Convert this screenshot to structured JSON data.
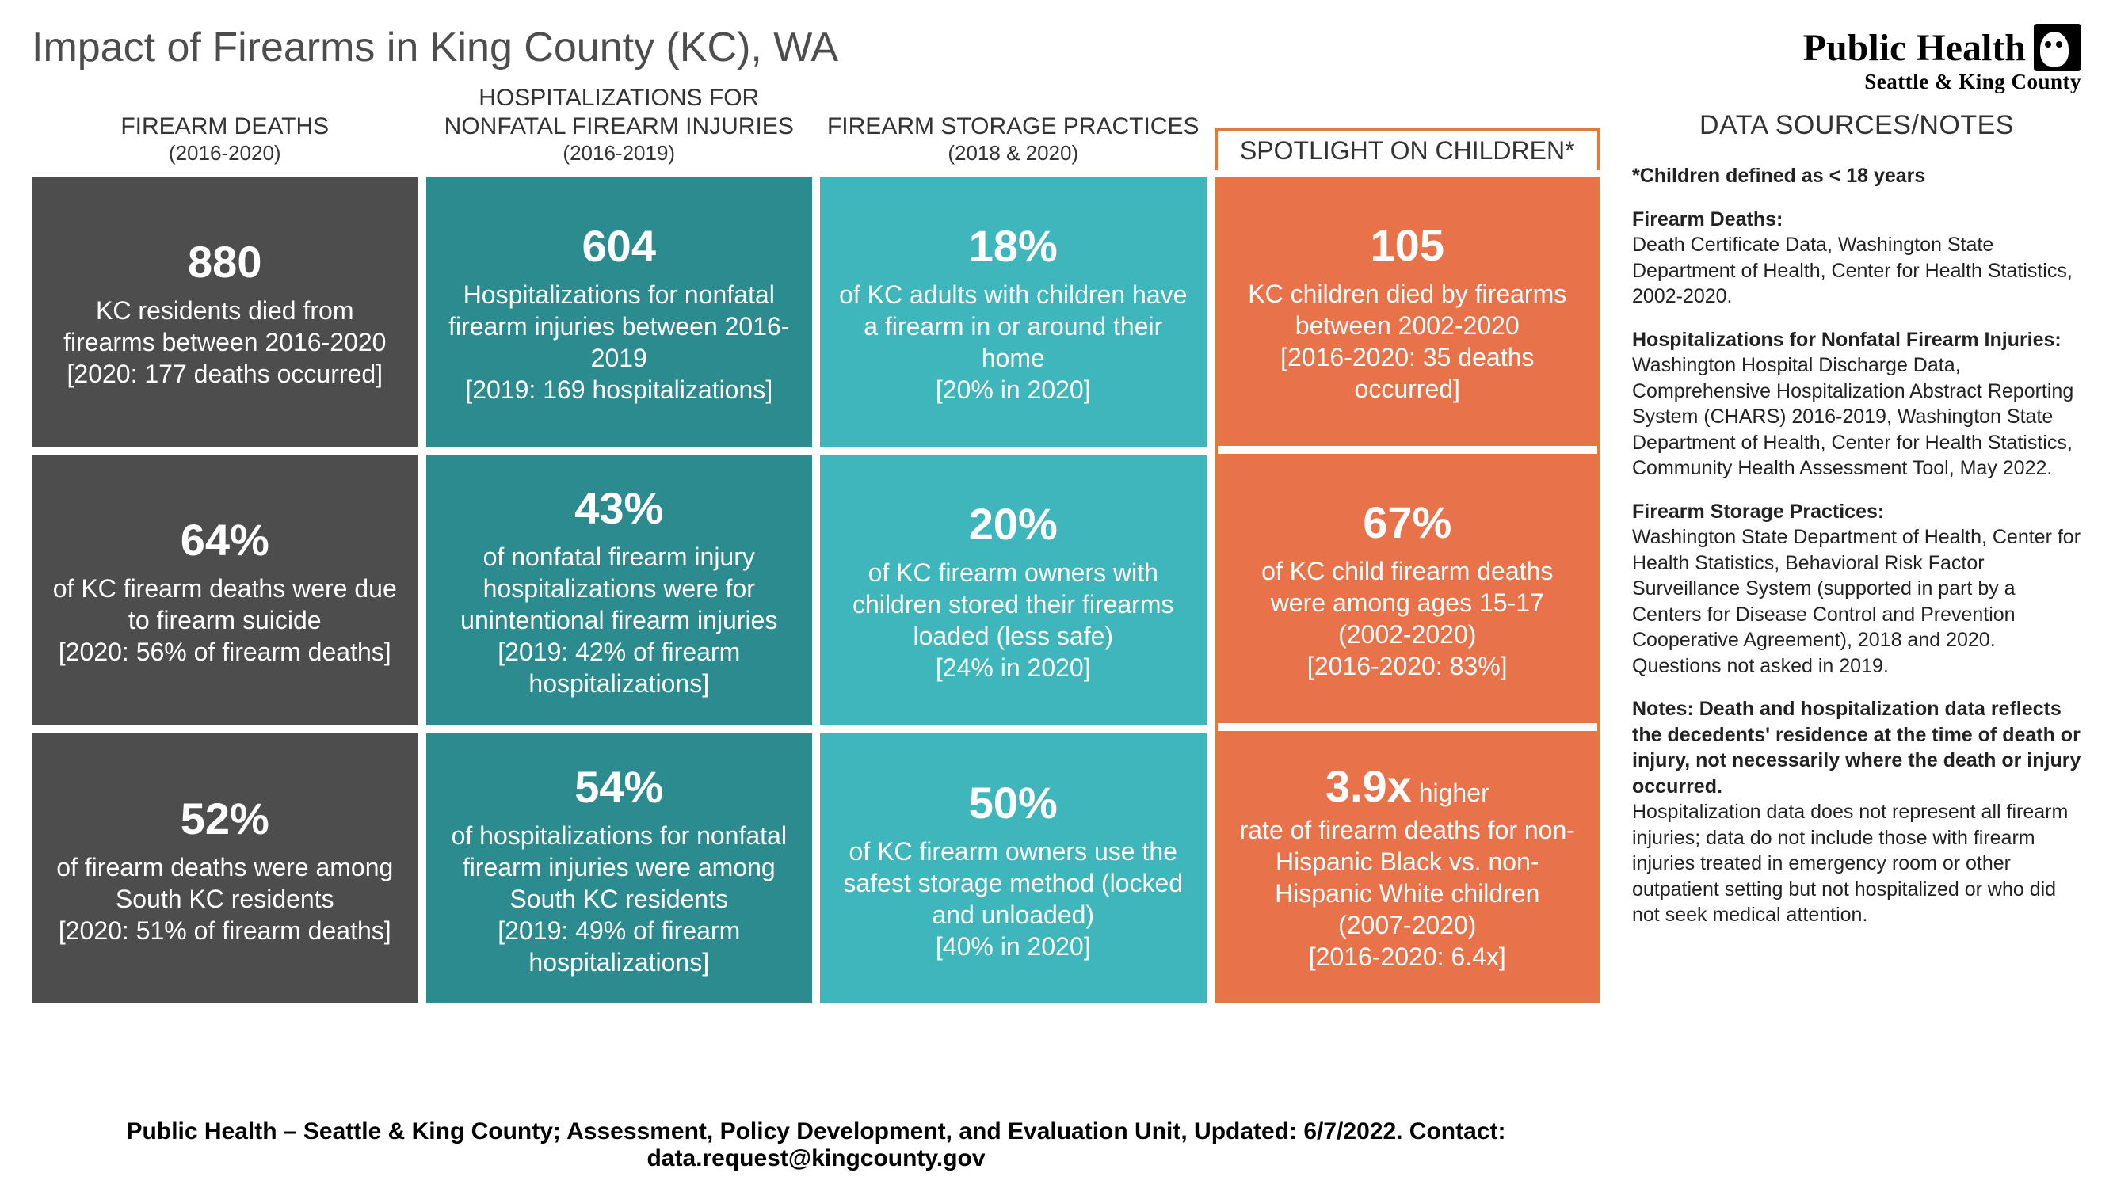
{
  "title": "Impact of Firearms in King County (KC), WA",
  "logo": {
    "line1": "Public Health",
    "line2": "Seattle & King County"
  },
  "columns": [
    {
      "title": "FIREARM DEATHS",
      "subtitle": "(2016-2020)"
    },
    {
      "title": "HOSPITALIZATIONS FOR NONFATAL FIREARM INJURIES",
      "subtitle": "(2016-2019)"
    },
    {
      "title": "FIREARM STORAGE PRACTICES",
      "subtitle": "(2018 & 2020)"
    },
    {
      "title": "SPOTLIGHT ON CHILDREN*",
      "subtitle": ""
    }
  ],
  "colors": {
    "col1": "#4d4d4d",
    "col2": "#2b8b8f",
    "col3": "#3eb6bb",
    "col4": "#e8734b",
    "spotlight_border": "#e07a3f",
    "text_white": "#ffffff"
  },
  "grid": {
    "r1c1": {
      "stat": "880",
      "body": "KC residents died from firearms between 2016-2020 [2020: 177 deaths occurred]"
    },
    "r1c2": {
      "stat": "604",
      "body": "Hospitalizations for nonfatal firearm injuries between 2016-2019\n[2019: 169 hospitalizations]"
    },
    "r1c3": {
      "stat": "18%",
      "body": "of KC adults with children have a firearm in or around their home\n[20% in 2020]"
    },
    "r1c4": {
      "stat": "105",
      "body": "KC children died by firearms between 2002-2020\n[2016-2020: 35 deaths occurred]"
    },
    "r2c1": {
      "stat": "64%",
      "body": "of KC firearm deaths were due to firearm suicide\n[2020: 56% of firearm deaths]"
    },
    "r2c2": {
      "stat": "43%",
      "body": "of nonfatal firearm injury hospitalizations were for unintentional firearm injuries\n[2019: 42% of firearm hospitalizations]"
    },
    "r2c3": {
      "stat": "20%",
      "body": "of KC firearm owners with children stored their firearms loaded (less safe)\n[24% in 2020]"
    },
    "r2c4": {
      "stat": "67%",
      "body": "of KC child firearm deaths were among ages 15-17 (2002-2020)\n[2016-2020: 83%]"
    },
    "r3c1": {
      "stat": "52%",
      "body": "of firearm deaths were among South KC residents\n[2020: 51% of firearm deaths]"
    },
    "r3c2": {
      "stat": "54%",
      "body": "of hospitalizations for nonfatal firearm injuries were among South KC residents\n[2019: 49% of firearm hospitalizations]"
    },
    "r3c3": {
      "stat": "50%",
      "body": "of KC firearm owners use the safest storage method (locked and unloaded)\n[40% in 2020]"
    },
    "r3c4": {
      "stat": "3.9x",
      "stat_suffix": " higher",
      "body": "rate of firearm deaths for non-Hispanic Black vs. non-Hispanic White children (2007-2020)\n[2016-2020: 6.4x]"
    }
  },
  "sources": {
    "title": "DATA SOURCES/NOTES",
    "children_def": "*Children defined as < 18 years",
    "firearm_deaths_h": "Firearm Deaths:",
    "firearm_deaths_b": "Death Certificate Data, Washington State Department of Health, Center for Health Statistics, 2002-2020.",
    "hosp_h": "Hospitalizations for Nonfatal Firearm Injuries:",
    "hosp_b": "Washington Hospital Discharge Data, Comprehensive Hospitalization Abstract Reporting System (CHARS) 2016-2019, Washington State Department of Health, Center for Health Statistics, Community Health Assessment Tool, May 2022.",
    "storage_h": "Firearm Storage Practices:",
    "storage_b": "Washington State Department of Health, Center for Health Statistics, Behavioral Risk Factor Surveillance System (supported in part by a Centers for Disease Control and Prevention Cooperative Agreement), 2018 and 2020. Questions not asked in 2019.",
    "notes_h": "Notes: Death and hospitalization data reflects the decedents' residence at the time of death or injury, not necessarily where the death or injury occurred.",
    "notes_b": "Hospitalization data does not represent all firearm injuries; data do not include those with firearm injuries treated in emergency room or other outpatient setting but not hospitalized or who did not seek medical attention."
  },
  "footer": "Public Health – Seattle & King County; Assessment, Policy Development, and Evaluation Unit, Updated: 6/7/2022. Contact: data.request@kingcounty.gov"
}
